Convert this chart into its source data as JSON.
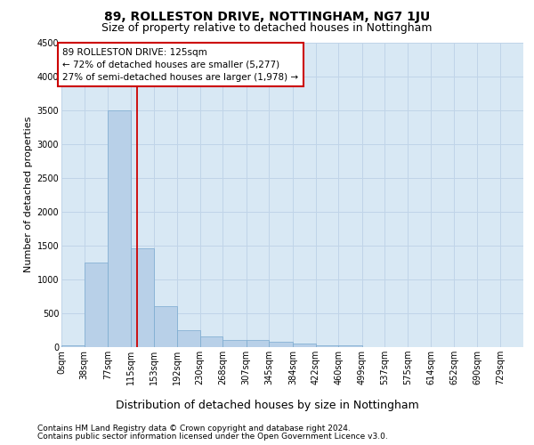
{
  "title": "89, ROLLESTON DRIVE, NOTTINGHAM, NG7 1JU",
  "subtitle": "Size of property relative to detached houses in Nottingham",
  "xlabel": "Distribution of detached houses by size in Nottingham",
  "ylabel": "Number of detached properties",
  "footnote1": "Contains HM Land Registry data © Crown copyright and database right 2024.",
  "footnote2": "Contains public sector information licensed under the Open Government Licence v3.0.",
  "annotation_line1": "89 ROLLESTON DRIVE: 125sqm",
  "annotation_line2": "← 72% of detached houses are smaller (5,277)",
  "annotation_line3": "27% of semi-detached houses are larger (1,978) →",
  "bar_color": "#b8d0e8",
  "bar_edge_color": "#7aaacf",
  "grid_color": "#c0d4e8",
  "background_color": "#d8e8f4",
  "annotation_box_edgecolor": "#cc0000",
  "vline_color": "#cc0000",
  "property_size_sqm": 125,
  "bin_edges": [
    0,
    38,
    77,
    115,
    153,
    192,
    230,
    268,
    307,
    345,
    384,
    422,
    460,
    499,
    537,
    575,
    614,
    652,
    690,
    729,
    767
  ],
  "bin_counts": [
    30,
    1250,
    3500,
    1460,
    610,
    250,
    155,
    110,
    100,
    75,
    50,
    25,
    20,
    5,
    0,
    0,
    0,
    0,
    0,
    0
  ],
  "ylim": [
    0,
    4500
  ],
  "yticks": [
    0,
    500,
    1000,
    1500,
    2000,
    2500,
    3000,
    3500,
    4000,
    4500
  ],
  "title_fontsize": 10,
  "subtitle_fontsize": 9,
  "xlabel_fontsize": 9,
  "ylabel_fontsize": 8,
  "tick_fontsize": 7,
  "annotation_fontsize": 7.5,
  "footnote_fontsize": 6.5
}
